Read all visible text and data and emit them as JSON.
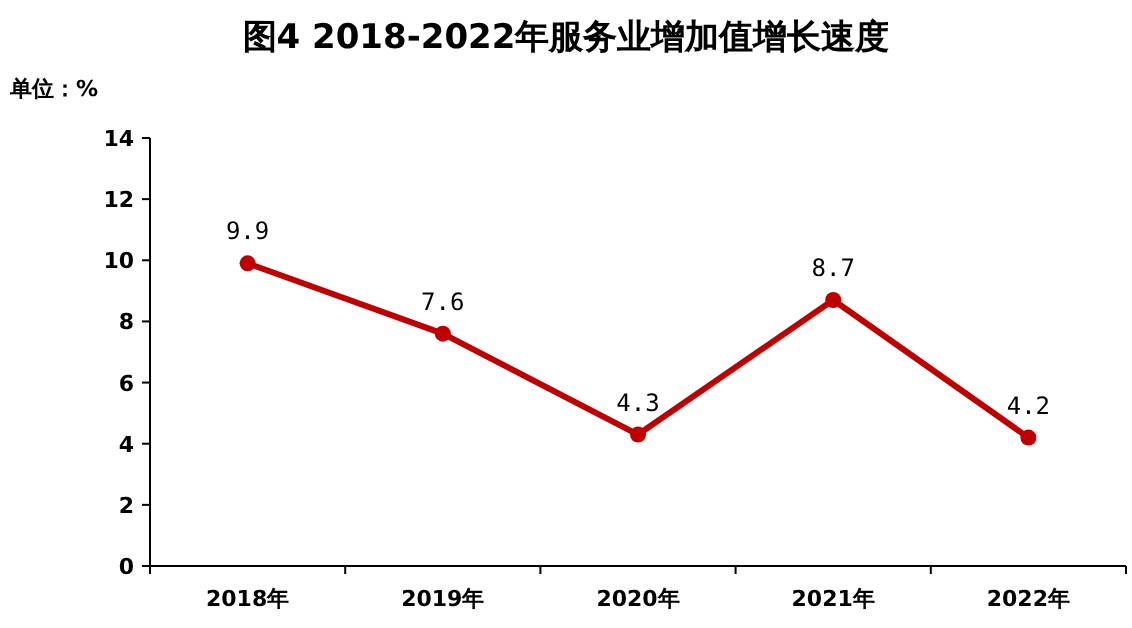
{
  "chart_data": {
    "type": "line",
    "title": "图4  2018-2022年服务业增加值增长速度",
    "ylabel": "单位：%",
    "categories": [
      "2018年",
      "2019年",
      "2020年",
      "2021年",
      "2022年"
    ],
    "series": [
      {
        "color": "#c00000",
        "values": [
          9.9,
          7.6,
          4.3,
          8.7,
          4.2
        ]
      }
    ],
    "ylim": [
      0,
      14
    ],
    "yticks": [
      0,
      2,
      4,
      6,
      8,
      10,
      12,
      14
    ],
    "grid": false,
    "marker": "circle",
    "line_style": "solid",
    "data_labels": true
  }
}
